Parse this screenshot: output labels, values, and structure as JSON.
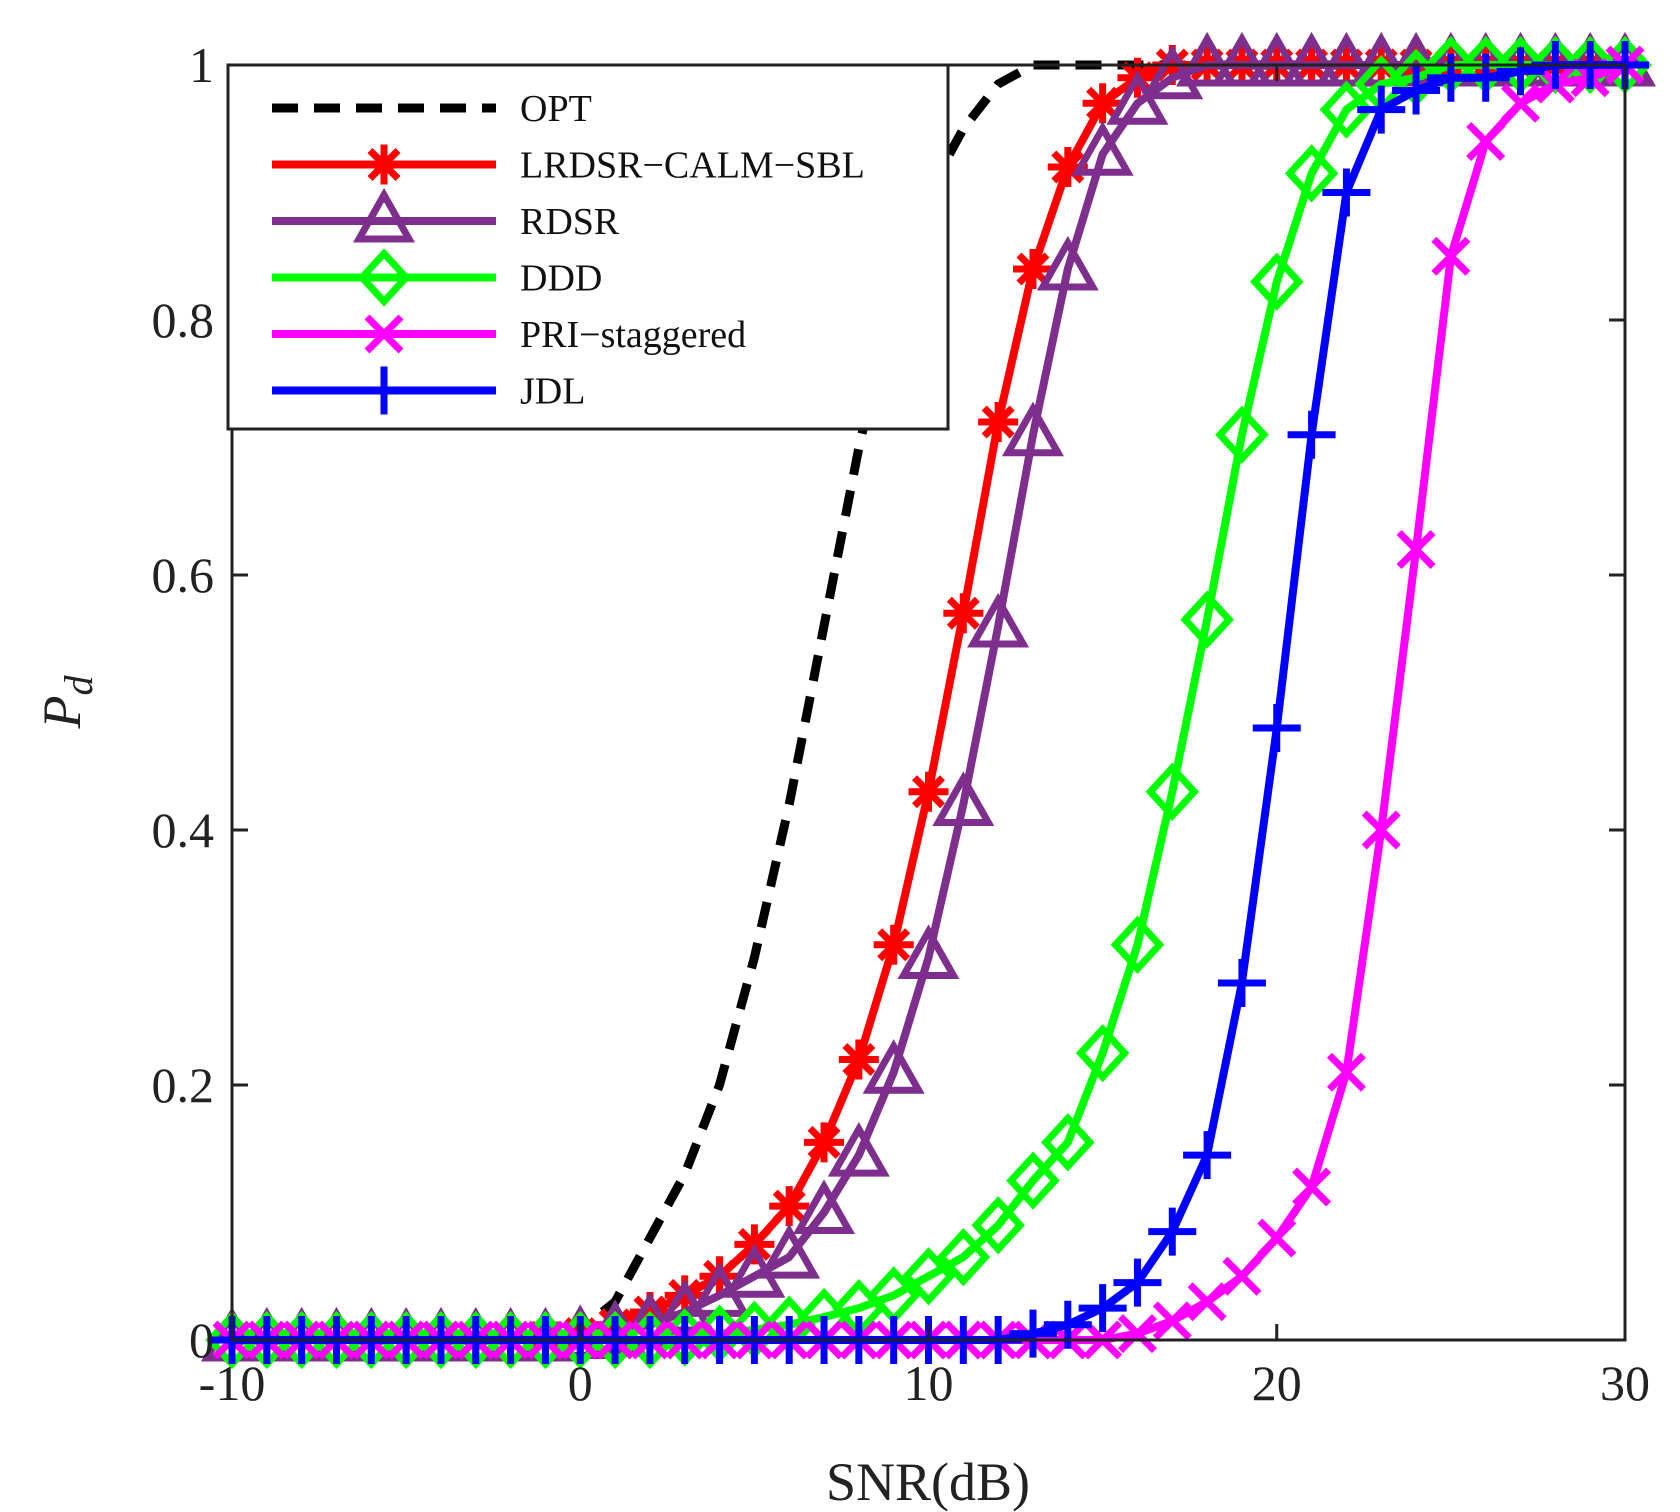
{
  "chart_data": {
    "type": "line",
    "title": "",
    "xlabel": "SNR(dB)",
    "ylabel_main": "P",
    "ylabel_sub": "d",
    "xlim": [
      -10,
      30
    ],
    "ylim": [
      0,
      1
    ],
    "xticks": [
      -10,
      0,
      10,
      20,
      30
    ],
    "xtick_labels": [
      "-10",
      "0",
      "10",
      "20",
      "30"
    ],
    "yticks": [
      0,
      0.2,
      0.4,
      0.6,
      0.8,
      1
    ],
    "ytick_labels": [
      "0",
      "0.2",
      "0.4",
      "0.6",
      "0.8",
      "1"
    ],
    "grid": false,
    "legend_position": "top-left",
    "x": [
      -10,
      -9,
      -8,
      -7,
      -6,
      -5,
      -4,
      -3,
      -2,
      -1,
      0,
      1,
      2,
      3,
      4,
      5,
      6,
      7,
      8,
      9,
      10,
      11,
      12,
      13,
      14,
      15,
      16,
      17,
      18,
      19,
      20,
      21,
      22,
      23,
      24,
      25,
      26,
      27,
      28,
      29,
      30
    ],
    "series": [
      {
        "name": "OPT",
        "color": "#000000",
        "dash": "dashed",
        "marker": "none",
        "values": [
          0,
          0,
          0,
          0,
          0,
          0,
          0,
          0,
          0,
          0.002,
          0.008,
          0.03,
          0.08,
          0.13,
          0.2,
          0.3,
          0.42,
          0.56,
          0.7,
          0.82,
          0.9,
          0.95,
          0.985,
          1,
          1,
          1,
          1,
          1,
          1,
          1,
          1,
          1,
          1,
          1,
          1,
          1,
          1,
          1,
          1,
          1,
          1
        ]
      },
      {
        "name": "LRDSR−CALM−SBL",
        "color": "#ff0000",
        "dash": "solid",
        "marker": "asterisk",
        "values": [
          0,
          0,
          0,
          0,
          0,
          0,
          0,
          0,
          0,
          0.002,
          0.005,
          0.012,
          0.022,
          0.035,
          0.05,
          0.075,
          0.105,
          0.155,
          0.22,
          0.31,
          0.43,
          0.57,
          0.72,
          0.84,
          0.92,
          0.97,
          0.99,
          1,
          1,
          1,
          1,
          1,
          1,
          1,
          1,
          1,
          1,
          1,
          1,
          1,
          1
        ]
      },
      {
        "name": "RDSR",
        "color": "#7e2f8e",
        "dash": "solid",
        "marker": "triangle",
        "values": [
          0,
          0,
          0,
          0,
          0,
          0,
          0,
          0,
          0,
          0,
          0.002,
          0.006,
          0.012,
          0.022,
          0.035,
          0.05,
          0.065,
          0.1,
          0.145,
          0.21,
          0.3,
          0.42,
          0.56,
          0.71,
          0.84,
          0.93,
          0.97,
          0.99,
          1,
          1,
          1,
          1,
          1,
          1,
          1,
          1,
          1,
          1,
          1,
          1,
          1
        ]
      },
      {
        "name": "DDD",
        "color": "#00ff00",
        "dash": "solid",
        "marker": "diamond",
        "values": [
          0,
          0,
          0,
          0,
          0,
          0,
          0,
          0,
          0,
          0,
          0,
          0,
          0,
          0.002,
          0.005,
          0.008,
          0.012,
          0.018,
          0.025,
          0.035,
          0.05,
          0.065,
          0.09,
          0.125,
          0.155,
          0.225,
          0.31,
          0.43,
          0.565,
          0.71,
          0.83,
          0.915,
          0.965,
          0.985,
          0.99,
          1,
          1,
          1,
          1,
          1,
          1
        ]
      },
      {
        "name": "PRI−staggered",
        "color": "#ff00ff",
        "dash": "solid",
        "marker": "x",
        "values": [
          0,
          0,
          0,
          0,
          0,
          0,
          0,
          0,
          0,
          0,
          0,
          0,
          0,
          0,
          0,
          0,
          0,
          0,
          0,
          0,
          0,
          0,
          0,
          0,
          0,
          0,
          0.005,
          0.015,
          0.03,
          0.05,
          0.08,
          0.12,
          0.21,
          0.4,
          0.62,
          0.85,
          0.94,
          0.97,
          0.985,
          0.99,
          1
        ]
      },
      {
        "name": "JDL",
        "color": "#0000ff",
        "dash": "solid",
        "marker": "plus",
        "values": [
          0,
          0,
          0,
          0,
          0,
          0,
          0,
          0,
          0,
          0,
          0,
          0,
          0,
          0,
          0,
          0,
          0,
          0,
          0,
          0,
          0,
          0,
          0,
          0.005,
          0.012,
          0.025,
          0.045,
          0.085,
          0.145,
          0.28,
          0.48,
          0.71,
          0.9,
          0.965,
          0.98,
          0.99,
          0.99,
          0.995,
          1,
          1,
          1
        ]
      }
    ]
  }
}
